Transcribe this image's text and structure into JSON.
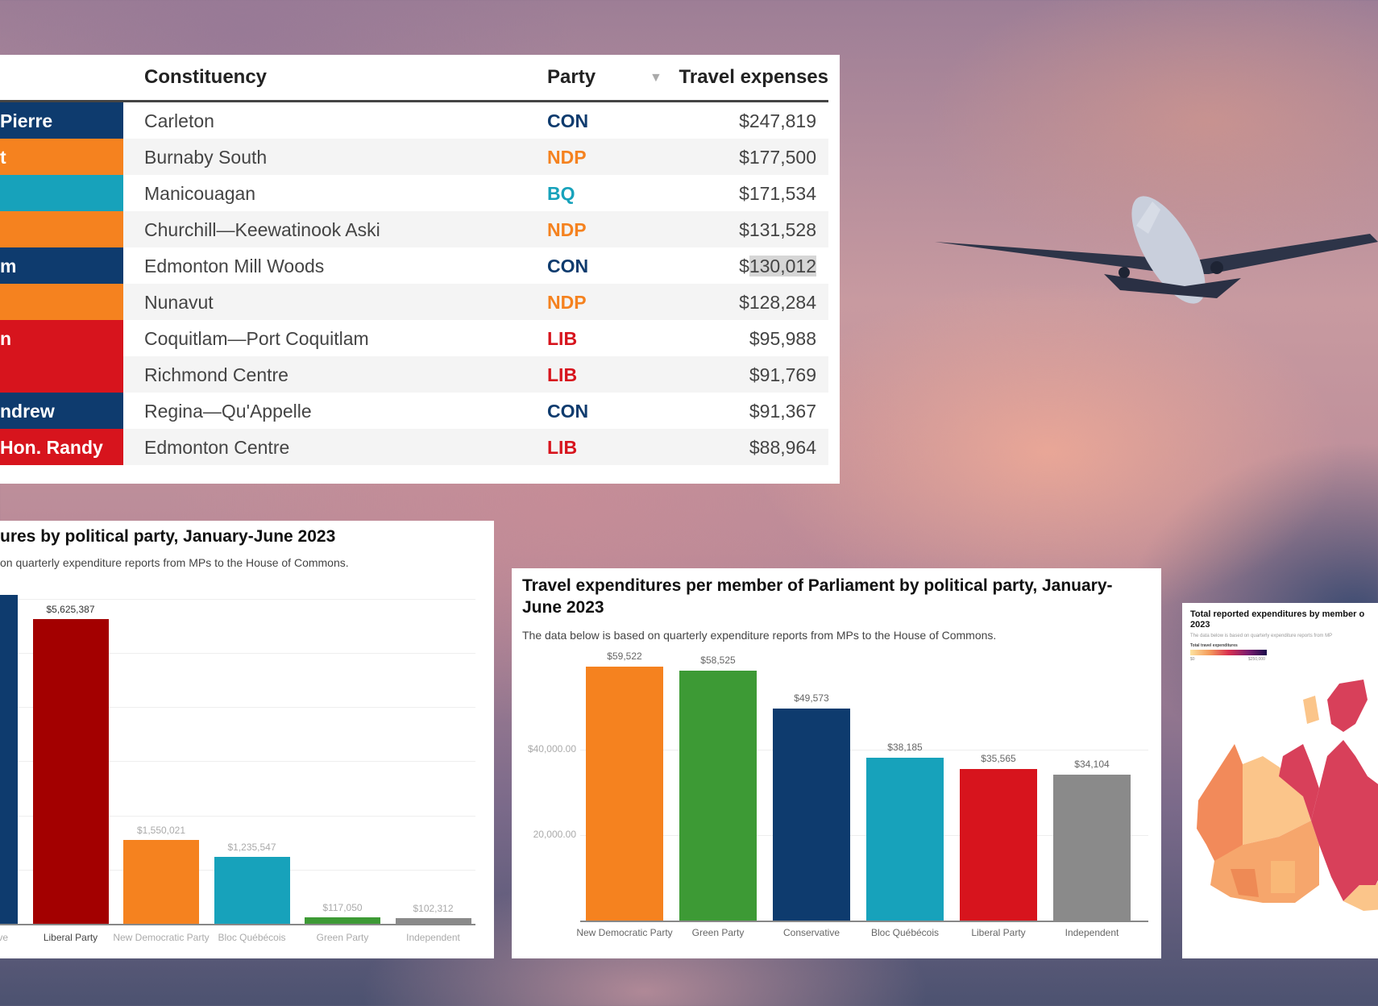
{
  "table": {
    "headers": {
      "constituency": "Constituency",
      "party": "Party",
      "expenses": "Travel expenses"
    },
    "sort_icon": "sort-down-icon",
    "rows": [
      {
        "name": "Pierre",
        "constituency": "Carleton",
        "party": "CON",
        "expenses": "$247,819"
      },
      {
        "name": "t",
        "constituency": "Burnaby South",
        "party": "NDP",
        "expenses": "$177,500"
      },
      {
        "name": "",
        "constituency": "Manicouagan",
        "party": "BQ",
        "expenses": "$171,534"
      },
      {
        "name": "",
        "constituency": "Churchill—Keewatinook Aski",
        "party": "NDP",
        "expenses": "$131,528"
      },
      {
        "name": "m",
        "constituency": "Edmonton Mill Woods",
        "party": "CON",
        "expenses": "$130,012"
      },
      {
        "name": "",
        "constituency": "Nunavut",
        "party": "NDP",
        "expenses": "$128,284"
      },
      {
        "name": "n",
        "constituency": "Coquitlam—Port Coquitlam",
        "party": "LIB",
        "expenses": "$95,988"
      },
      {
        "name": "",
        "constituency": "Richmond Centre",
        "party": "LIB",
        "expenses": "$91,769"
      },
      {
        "name": "ndrew",
        "constituency": "Regina—Qu'Appelle",
        "party": "CON",
        "expenses": "$91,367"
      },
      {
        "name": "Hon. Randy",
        "constituency": "Edmonton Centre",
        "party": "LIB",
        "expenses": "$88,964"
      }
    ]
  },
  "colors": {
    "CON": "#0e3b6e",
    "NDP": "#f5821f",
    "BQ": "#17a2bb",
    "LIB": "#d7141d",
    "GRN": "#3d9a35",
    "IND": "#8a8a8a",
    "LIB_DARK": "#a30000"
  },
  "chart_data": [
    {
      "type": "bar",
      "title": "ures by political party, January-June 2023",
      "subtitle": "on quarterly expenditure reports from MPs to the House of Commons.",
      "categories": [
        "Conservative",
        "Liberal Party",
        "New Democratic Party",
        "Bloc Québécois",
        "Green Party",
        "Independent"
      ],
      "values": [
        6070000,
        5625387,
        1550021,
        1235547,
        117050,
        102312
      ],
      "labels": [
        null,
        "$5,625,387",
        "$1,550,021",
        "$1,235,547",
        "$117,050",
        "$102,312"
      ],
      "colors": [
        "#0e3b6e",
        "#a30000",
        "#f5821f",
        "#17a2bb",
        "#3d9a35",
        "#8a8a8a"
      ],
      "ylim": [
        0,
        6000000
      ],
      "grid": true
    },
    {
      "type": "bar",
      "title": "Travel expenditures per member of Parliament by political party, January-",
      "title2": "June 2023",
      "subtitle": "The data below is based on quarterly expenditure reports from MPs to the House of Commons.",
      "categories": [
        "New Democratic Party",
        "Green Party",
        "Conservative",
        "Bloc Québécois",
        "Liberal Party",
        "Independent"
      ],
      "values": [
        59522,
        58525,
        49573,
        38185,
        35565,
        34104
      ],
      "labels": [
        "$59,522",
        "$58,525",
        "$49,573",
        "$38,185",
        "$35,565",
        "$34,104"
      ],
      "colors": [
        "#f5821f",
        "#3d9a35",
        "#0e3b6e",
        "#17a2bb",
        "#d7141d",
        "#8a8a8a"
      ],
      "yticks": [
        {
          "v": 40000,
          "label": "$40,000.00"
        },
        {
          "v": 20000,
          "label": "20,000.00"
        }
      ],
      "ylim": [
        0,
        60000
      ],
      "grid": true
    }
  ],
  "map": {
    "title": "Total reported expenditures by member o",
    "title2": "2023",
    "subtitle": "The data below is based on quarterly expenditure reports from MP",
    "legend_title": "Total travel expenditures",
    "legend_min": "$0",
    "legend_max": "$250,000"
  }
}
